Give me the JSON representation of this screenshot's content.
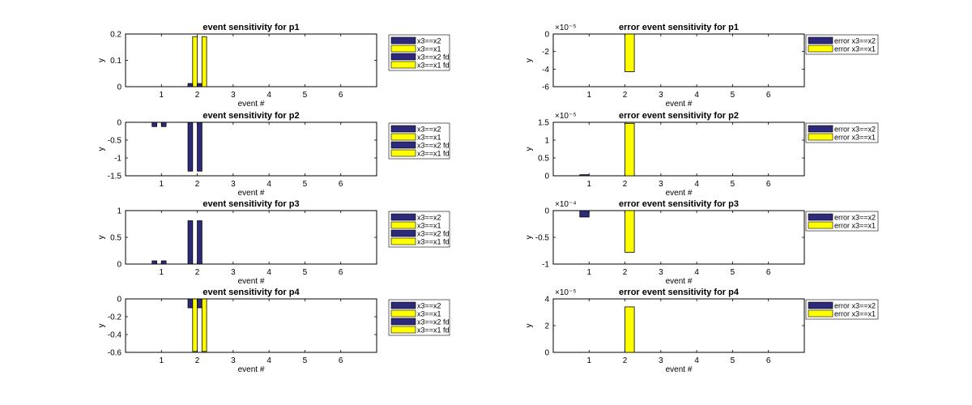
{
  "colors": {
    "series1": "#2e2a7a",
    "series2": "#ffff00",
    "series3": "#2e2a7a",
    "series4": "#ffff00"
  },
  "chart_data": [
    {
      "type": "bar",
      "title": "event sensitivity for p1",
      "xlabel": "event #",
      "ylabel": "y",
      "categories": [
        "1",
        "2",
        "3",
        "4",
        "5",
        "6"
      ],
      "xlim": [
        0,
        7
      ],
      "ylim": [
        0,
        0.2
      ],
      "yticks": [
        0,
        0.1,
        0.2
      ],
      "yticklabels": [
        "0",
        "0.1",
        "0.2"
      ],
      "exponent_label": "",
      "legend": "right",
      "series": [
        {
          "name": "x3==x2",
          "values": [
            0,
            0.012,
            0,
            0,
            0,
            0
          ],
          "color": "#2e2a7a"
        },
        {
          "name": "x3==x1",
          "values": [
            0,
            0.19,
            0,
            0,
            0,
            0
          ],
          "color": "#ffff00"
        },
        {
          "name": "x3==x2 fd",
          "values": [
            0,
            0.012,
            0,
            0,
            0,
            0
          ],
          "color": "#2e2a7a"
        },
        {
          "name": "x3==x1 fd",
          "values": [
            0,
            0.19,
            0,
            0,
            0,
            0
          ],
          "color": "#ffff00"
        }
      ]
    },
    {
      "type": "bar",
      "title": "error event sensitivity for p1",
      "xlabel": "event #",
      "ylabel": "y",
      "categories": [
        "1",
        "2",
        "3",
        "4",
        "5",
        "6"
      ],
      "xlim": [
        0,
        7
      ],
      "ylim": [
        -6,
        0
      ],
      "yticks": [
        -6,
        -4,
        -2,
        0
      ],
      "yticklabels": [
        "-6",
        "-4",
        "-2",
        "0"
      ],
      "exponent_label": "×10⁻⁵",
      "legend": "right",
      "series": [
        {
          "name": "error x3==x2",
          "values": [
            0,
            0,
            0,
            0,
            0,
            0
          ],
          "color": "#2e2a7a"
        },
        {
          "name": "error x3==x1",
          "values": [
            0,
            -4.3,
            0,
            0,
            0,
            0
          ],
          "color": "#ffff00"
        }
      ]
    },
    {
      "type": "bar",
      "title": "event sensitivity for p2",
      "xlabel": "event #",
      "ylabel": "y",
      "categories": [
        "1",
        "2",
        "3",
        "4",
        "5",
        "6"
      ],
      "xlim": [
        0,
        7
      ],
      "ylim": [
        -1.5,
        0
      ],
      "yticks": [
        -1.5,
        -1,
        -0.5,
        0
      ],
      "yticklabels": [
        "-1.5",
        "-1",
        "-0.5",
        "0"
      ],
      "exponent_label": "",
      "legend": "right",
      "series": [
        {
          "name": "x3==x2",
          "values": [
            -0.12,
            -1.37,
            0,
            0,
            0,
            0
          ],
          "color": "#2e2a7a"
        },
        {
          "name": "x3==x1",
          "values": [
            0,
            0,
            0,
            0,
            0,
            0
          ],
          "color": "#ffff00"
        },
        {
          "name": "x3==x2 fd",
          "values": [
            -0.12,
            -1.37,
            0,
            0,
            0,
            0
          ],
          "color": "#2e2a7a"
        },
        {
          "name": "x3==x1 fd",
          "values": [
            0,
            0,
            0,
            0,
            0,
            0
          ],
          "color": "#ffff00"
        }
      ]
    },
    {
      "type": "bar",
      "title": "error event sensitivity for p2",
      "xlabel": "event #",
      "ylabel": "y",
      "categories": [
        "1",
        "2",
        "3",
        "4",
        "5",
        "6"
      ],
      "xlim": [
        0,
        7
      ],
      "ylim": [
        0,
        1.5
      ],
      "yticks": [
        0,
        0.5,
        1,
        1.5
      ],
      "yticklabels": [
        "0",
        "0.5",
        "1",
        "1.5"
      ],
      "exponent_label": "×10⁻⁵",
      "legend": "right",
      "series": [
        {
          "name": "error x3==x2",
          "values": [
            0.03,
            0,
            0,
            0,
            0,
            0
          ],
          "color": "#2e2a7a"
        },
        {
          "name": "error x3==x1",
          "values": [
            0,
            1.47,
            0,
            0,
            0,
            0
          ],
          "color": "#ffff00"
        }
      ]
    },
    {
      "type": "bar",
      "title": "event sensitivity for p3",
      "xlabel": "event #",
      "ylabel": "y",
      "categories": [
        "1",
        "2",
        "3",
        "4",
        "5",
        "6"
      ],
      "xlim": [
        0,
        7
      ],
      "ylim": [
        0,
        1
      ],
      "yticks": [
        0,
        0.5,
        1
      ],
      "yticklabels": [
        "0",
        "0.5",
        "1"
      ],
      "exponent_label": "",
      "legend": "right",
      "series": [
        {
          "name": "x3==x2",
          "values": [
            0.06,
            0.81,
            0,
            0,
            0,
            0
          ],
          "color": "#2e2a7a"
        },
        {
          "name": "x3==x1",
          "values": [
            0,
            0,
            0,
            0,
            0,
            0
          ],
          "color": "#ffff00"
        },
        {
          "name": "x3==x2 fd",
          "values": [
            0.06,
            0.81,
            0,
            0,
            0,
            0
          ],
          "color": "#2e2a7a"
        },
        {
          "name": "x3==x1 fd",
          "values": [
            0,
            0,
            0,
            0,
            0,
            0
          ],
          "color": "#ffff00"
        }
      ]
    },
    {
      "type": "bar",
      "title": "error event sensitivity for p3",
      "xlabel": "event #",
      "ylabel": "y",
      "categories": [
        "1",
        "2",
        "3",
        "4",
        "5",
        "6"
      ],
      "xlim": [
        0,
        7
      ],
      "ylim": [
        -1,
        0
      ],
      "yticks": [
        -1,
        -0.5,
        0
      ],
      "yticklabels": [
        "-1",
        "-0.5",
        "0"
      ],
      "exponent_label": "×10⁻⁴",
      "legend": "right",
      "series": [
        {
          "name": "error x3==x2",
          "values": [
            -0.12,
            0,
            0,
            0,
            0,
            0
          ],
          "color": "#2e2a7a"
        },
        {
          "name": "error x3==x1",
          "values": [
            0,
            -0.78,
            0,
            0,
            0,
            0
          ],
          "color": "#ffff00"
        }
      ]
    },
    {
      "type": "bar",
      "title": "event sensitivity for p4",
      "xlabel": "event #",
      "ylabel": "y",
      "categories": [
        "1",
        "2",
        "3",
        "4",
        "5",
        "6"
      ],
      "xlim": [
        0,
        7
      ],
      "ylim": [
        -0.6,
        0
      ],
      "yticks": [
        -0.6,
        -0.4,
        -0.2,
        0
      ],
      "yticklabels": [
        "-0.6",
        "-0.4",
        "-0.2",
        "0"
      ],
      "exponent_label": "",
      "legend": "right",
      "series": [
        {
          "name": "x3==x2",
          "values": [
            0,
            -0.1,
            0,
            0,
            0,
            0
          ],
          "color": "#2e2a7a"
        },
        {
          "name": "x3==x1",
          "values": [
            0,
            -0.59,
            0,
            0,
            0,
            0
          ],
          "color": "#ffff00"
        },
        {
          "name": "x3==x2 fd",
          "values": [
            0,
            -0.1,
            0,
            0,
            0,
            0
          ],
          "color": "#2e2a7a"
        },
        {
          "name": "x3==x1 fd",
          "values": [
            0,
            -0.59,
            0,
            0,
            0,
            0
          ],
          "color": "#ffff00"
        }
      ]
    },
    {
      "type": "bar",
      "title": "error event sensitivity for p4",
      "xlabel": "event #",
      "ylabel": "y",
      "categories": [
        "1",
        "2",
        "3",
        "4",
        "5",
        "6"
      ],
      "xlim": [
        0,
        7
      ],
      "ylim": [
        0,
        4
      ],
      "yticks": [
        0,
        2,
        4
      ],
      "yticklabels": [
        "0",
        "2",
        "4"
      ],
      "exponent_label": "×10⁻⁵",
      "legend": "right",
      "series": [
        {
          "name": "error x3==x2",
          "values": [
            0,
            0,
            0,
            0,
            0,
            0
          ],
          "color": "#2e2a7a"
        },
        {
          "name": "error x3==x1",
          "values": [
            0,
            3.4,
            0,
            0,
            0,
            0
          ],
          "color": "#ffff00"
        }
      ]
    }
  ]
}
